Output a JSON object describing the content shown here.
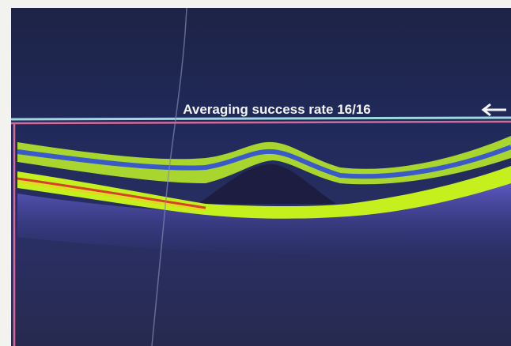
{
  "caption": "Averaging success rate 16/16"
}
